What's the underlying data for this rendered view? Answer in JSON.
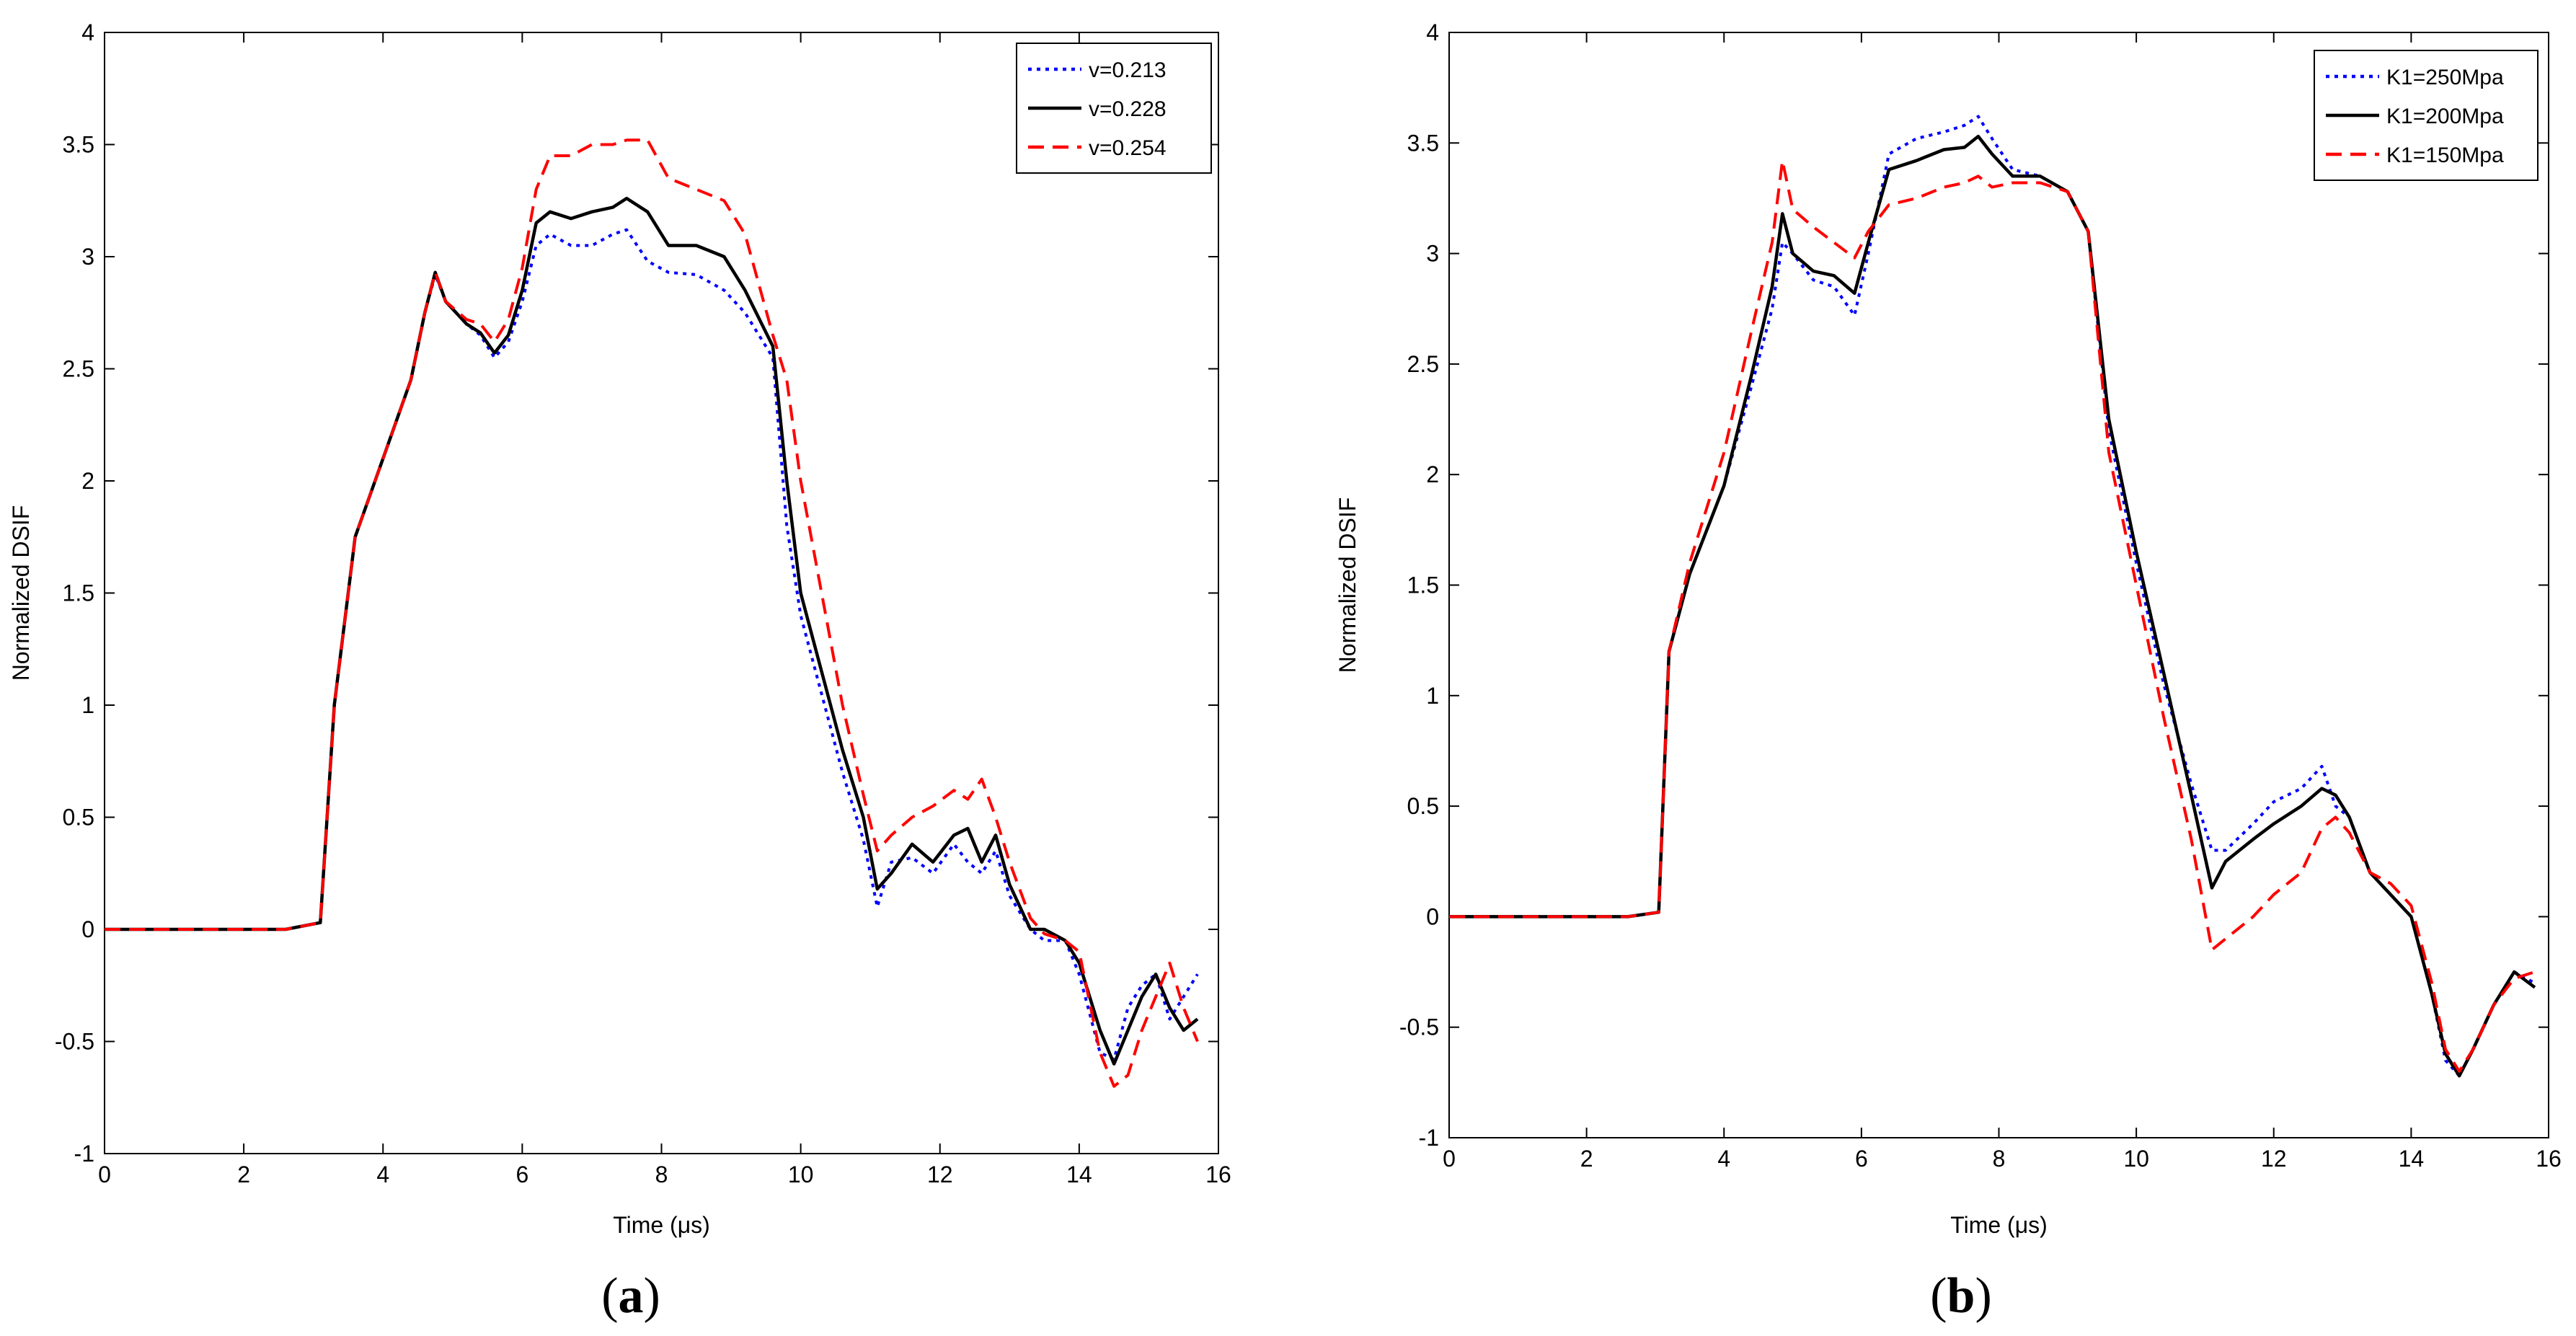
{
  "figure": {
    "captions": [
      {
        "open": "(",
        "letter": "a",
        "close": ")"
      },
      {
        "open": "(",
        "letter": "b",
        "close": ")"
      }
    ]
  },
  "chart_data": [
    {
      "type": "line",
      "panel": "a",
      "title": "",
      "xlabel": "Time (μs)",
      "ylabel": "Normalized DSIF",
      "xlim": [
        0,
        16
      ],
      "ylim": [
        -1,
        4
      ],
      "xticks": [
        0,
        2,
        4,
        6,
        8,
        10,
        12,
        14,
        16
      ],
      "yticks": [
        -1,
        -0.5,
        0,
        0.5,
        1,
        1.5,
        2,
        2.5,
        3,
        3.5,
        4
      ],
      "legend_position": "top-right",
      "series": [
        {
          "name": "v=0.213",
          "color": "#0000ff",
          "style": "dotted",
          "x": [
            0,
            2.6,
            3.1,
            3.3,
            3.6,
            4.0,
            4.4,
            4.6,
            4.75,
            4.9,
            5.2,
            5.4,
            5.6,
            5.8,
            6.0,
            6.2,
            6.4,
            6.7,
            7.0,
            7.3,
            7.5,
            7.8,
            8.1,
            8.5,
            8.9,
            9.2,
            9.6,
            9.8,
            10.0,
            10.3,
            10.6,
            10.9,
            11.1,
            11.3,
            11.6,
            11.9,
            12.2,
            12.4,
            12.6,
            12.8,
            13.0,
            13.3,
            13.5,
            13.8,
            14.0,
            14.3,
            14.5,
            14.7,
            14.9,
            15.1,
            15.3,
            15.5,
            15.7
          ],
          "y": [
            0,
            0,
            0.03,
            1.0,
            1.75,
            2.1,
            2.45,
            2.75,
            2.92,
            2.8,
            2.7,
            2.65,
            2.55,
            2.62,
            2.8,
            3.05,
            3.1,
            3.05,
            3.05,
            3.1,
            3.12,
            2.98,
            2.93,
            2.92,
            2.85,
            2.75,
            2.55,
            1.8,
            1.4,
            1.05,
            0.7,
            0.4,
            0.1,
            0.3,
            0.32,
            0.25,
            0.38,
            0.3,
            0.25,
            0.35,
            0.15,
            0.0,
            -0.05,
            -0.05,
            -0.2,
            -0.55,
            -0.58,
            -0.35,
            -0.25,
            -0.2,
            -0.4,
            -0.3,
            -0.2
          ]
        },
        {
          "name": "v=0.228",
          "color": "#000000",
          "style": "solid",
          "x": [
            0,
            2.6,
            3.1,
            3.3,
            3.6,
            4.0,
            4.4,
            4.6,
            4.75,
            4.9,
            5.2,
            5.4,
            5.6,
            5.8,
            6.0,
            6.2,
            6.4,
            6.7,
            7.0,
            7.3,
            7.5,
            7.8,
            8.1,
            8.5,
            8.9,
            9.2,
            9.6,
            9.8,
            10.0,
            10.3,
            10.6,
            10.9,
            11.1,
            11.3,
            11.6,
            11.9,
            12.2,
            12.4,
            12.6,
            12.8,
            13.0,
            13.3,
            13.5,
            13.8,
            14.0,
            14.3,
            14.5,
            14.7,
            14.9,
            15.1,
            15.3,
            15.5,
            15.7
          ],
          "y": [
            0,
            0,
            0.03,
            1.0,
            1.75,
            2.1,
            2.45,
            2.75,
            2.93,
            2.8,
            2.7,
            2.66,
            2.57,
            2.65,
            2.85,
            3.15,
            3.2,
            3.17,
            3.2,
            3.22,
            3.26,
            3.2,
            3.05,
            3.05,
            3.0,
            2.85,
            2.6,
            2.0,
            1.5,
            1.15,
            0.8,
            0.5,
            0.18,
            0.25,
            0.38,
            0.3,
            0.42,
            0.45,
            0.3,
            0.42,
            0.2,
            0.0,
            0.0,
            -0.05,
            -0.15,
            -0.45,
            -0.6,
            -0.45,
            -0.3,
            -0.2,
            -0.35,
            -0.45,
            -0.4
          ]
        },
        {
          "name": "v=0.254",
          "color": "#ff0000",
          "style": "dashed",
          "x": [
            0,
            2.6,
            3.1,
            3.3,
            3.6,
            4.0,
            4.4,
            4.6,
            4.75,
            4.9,
            5.2,
            5.4,
            5.6,
            5.8,
            6.0,
            6.2,
            6.4,
            6.7,
            7.0,
            7.3,
            7.5,
            7.8,
            8.1,
            8.5,
            8.9,
            9.2,
            9.6,
            9.8,
            10.0,
            10.3,
            10.6,
            10.9,
            11.1,
            11.3,
            11.6,
            11.9,
            12.2,
            12.4,
            12.6,
            12.8,
            13.0,
            13.3,
            13.5,
            13.8,
            14.0,
            14.3,
            14.5,
            14.7,
            14.9,
            15.1,
            15.3,
            15.5,
            15.7
          ],
          "y": [
            0,
            0,
            0.03,
            1.0,
            1.75,
            2.1,
            2.45,
            2.75,
            2.93,
            2.8,
            2.72,
            2.7,
            2.62,
            2.72,
            2.95,
            3.3,
            3.45,
            3.45,
            3.5,
            3.5,
            3.52,
            3.52,
            3.35,
            3.3,
            3.25,
            3.1,
            2.65,
            2.45,
            2.0,
            1.5,
            1.0,
            0.6,
            0.35,
            0.42,
            0.5,
            0.55,
            0.62,
            0.58,
            0.67,
            0.5,
            0.3,
            0.05,
            -0.02,
            -0.05,
            -0.1,
            -0.55,
            -0.7,
            -0.65,
            -0.45,
            -0.3,
            -0.15,
            -0.35,
            -0.5
          ]
        }
      ]
    },
    {
      "type": "line",
      "panel": "b",
      "title": "",
      "xlabel": "Time (μs)",
      "ylabel": "Normalized DSIF",
      "xlim": [
        0,
        16
      ],
      "ylim": [
        -1,
        4
      ],
      "xticks": [
        0,
        2,
        4,
        6,
        8,
        10,
        12,
        14,
        16
      ],
      "yticks": [
        -1,
        -0.5,
        0,
        0.5,
        1,
        1.5,
        2,
        2.5,
        3,
        3.5,
        4
      ],
      "legend_position": "top-right",
      "series": [
        {
          "name": "K1=250Mpa",
          "color": "#0000ff",
          "style": "dotted",
          "x": [
            0,
            2.6,
            3.05,
            3.2,
            3.5,
            4.0,
            4.4,
            4.7,
            4.85,
            5.0,
            5.3,
            5.6,
            5.9,
            6.1,
            6.4,
            6.8,
            7.2,
            7.5,
            7.7,
            7.9,
            8.2,
            8.6,
            9.0,
            9.3,
            9.6,
            10.0,
            10.4,
            10.8,
            11.1,
            11.3,
            11.7,
            12.0,
            12.4,
            12.7,
            12.9,
            13.1,
            13.4,
            13.7,
            14.0,
            14.3,
            14.5,
            14.7,
            14.9,
            15.2,
            15.5,
            15.8
          ],
          "y": [
            0,
            0,
            0.02,
            1.2,
            1.55,
            1.95,
            2.4,
            2.75,
            3.05,
            3.0,
            2.88,
            2.85,
            2.72,
            3.0,
            3.45,
            3.52,
            3.55,
            3.58,
            3.62,
            3.52,
            3.38,
            3.35,
            3.28,
            3.1,
            2.2,
            1.6,
            1.05,
            0.6,
            0.3,
            0.3,
            0.42,
            0.52,
            0.58,
            0.68,
            0.5,
            0.45,
            0.2,
            0.1,
            0.0,
            -0.35,
            -0.65,
            -0.72,
            -0.6,
            -0.4,
            -0.25,
            -0.3
          ]
        },
        {
          "name": "K1=200Mpa",
          "color": "#000000",
          "style": "solid",
          "x": [
            0,
            2.6,
            3.05,
            3.2,
            3.5,
            4.0,
            4.4,
            4.7,
            4.85,
            5.0,
            5.3,
            5.6,
            5.9,
            6.1,
            6.4,
            6.8,
            7.2,
            7.5,
            7.7,
            7.9,
            8.2,
            8.6,
            9.0,
            9.3,
            9.6,
            10.0,
            10.4,
            10.8,
            11.1,
            11.3,
            11.7,
            12.0,
            12.4,
            12.7,
            12.9,
            13.1,
            13.4,
            13.7,
            14.0,
            14.3,
            14.5,
            14.7,
            14.9,
            15.2,
            15.5,
            15.8
          ],
          "y": [
            0,
            0,
            0.02,
            1.2,
            1.55,
            1.95,
            2.45,
            2.85,
            3.18,
            3.0,
            2.92,
            2.9,
            2.82,
            3.05,
            3.38,
            3.42,
            3.47,
            3.48,
            3.53,
            3.45,
            3.35,
            3.35,
            3.28,
            3.1,
            2.25,
            1.65,
            1.1,
            0.55,
            0.13,
            0.25,
            0.35,
            0.42,
            0.5,
            0.58,
            0.55,
            0.45,
            0.2,
            0.1,
            0.0,
            -0.35,
            -0.62,
            -0.72,
            -0.6,
            -0.4,
            -0.25,
            -0.32
          ]
        },
        {
          "name": "K1=150Mpa",
          "color": "#ff0000",
          "style": "dashed",
          "x": [
            0,
            2.6,
            3.05,
            3.2,
            3.5,
            4.0,
            4.4,
            4.7,
            4.85,
            5.0,
            5.3,
            5.6,
            5.9,
            6.1,
            6.4,
            6.8,
            7.2,
            7.5,
            7.7,
            7.9,
            8.2,
            8.6,
            9.0,
            9.3,
            9.6,
            10.0,
            10.4,
            10.8,
            11.1,
            11.3,
            11.7,
            12.0,
            12.4,
            12.7,
            12.9,
            13.1,
            13.4,
            13.7,
            14.0,
            14.3,
            14.5,
            14.7,
            14.9,
            15.2,
            15.5,
            15.8
          ],
          "y": [
            0,
            0,
            0.02,
            1.2,
            1.6,
            2.1,
            2.65,
            3.05,
            3.42,
            3.2,
            3.12,
            3.05,
            2.98,
            3.1,
            3.22,
            3.25,
            3.3,
            3.32,
            3.35,
            3.3,
            3.32,
            3.32,
            3.28,
            3.1,
            2.1,
            1.5,
            0.9,
            0.35,
            -0.15,
            -0.1,
            0.0,
            0.1,
            0.2,
            0.4,
            0.45,
            0.38,
            0.2,
            0.15,
            0.05,
            -0.3,
            -0.6,
            -0.7,
            -0.6,
            -0.4,
            -0.28,
            -0.25
          ]
        }
      ]
    }
  ]
}
